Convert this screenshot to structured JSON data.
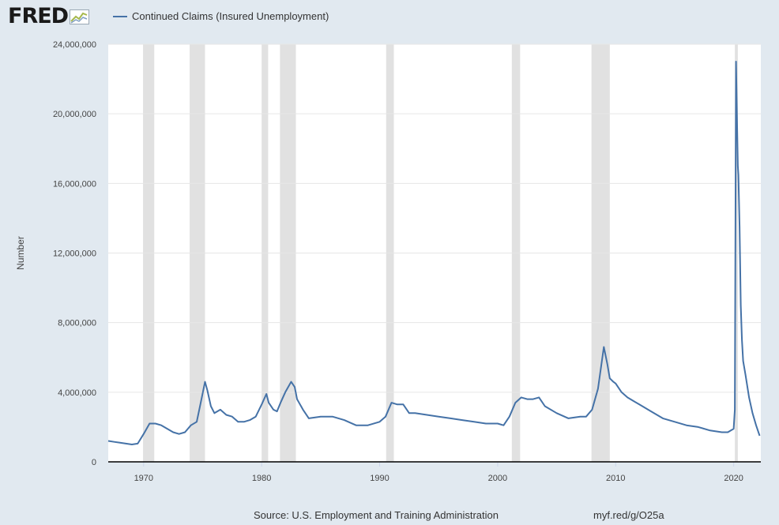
{
  "header": {
    "logo_text": "FRED",
    "logo_icon": "trend-chart-icon"
  },
  "chart_data": {
    "type": "line",
    "title": "",
    "xlabel": "",
    "ylabel": "Number",
    "xlim": [
      1967.0,
      2022.3
    ],
    "ylim": [
      0,
      24000000
    ],
    "grid": true,
    "legend_position": "top-left",
    "y_ticks": [
      0,
      4000000,
      8000000,
      12000000,
      16000000,
      20000000,
      24000000
    ],
    "y_tick_labels": [
      "0",
      "4,000,000",
      "8,000,000",
      "12,000,000",
      "16,000,000",
      "20,000,000",
      "24,000,000"
    ],
    "x_ticks": [
      1970,
      1980,
      1990,
      2000,
      2010,
      2020
    ],
    "x_tick_labels": [
      "1970",
      "1980",
      "1990",
      "2000",
      "2010",
      "2020"
    ],
    "recessions": [
      [
        1969.95,
        1970.9
      ],
      [
        1973.9,
        1975.2
      ],
      [
        1980.0,
        1980.55
      ],
      [
        1981.55,
        1982.9
      ],
      [
        1990.55,
        1991.2
      ],
      [
        2001.2,
        2001.9
      ],
      [
        2007.95,
        2009.5
      ],
      [
        2020.1,
        2020.35
      ]
    ],
    "series": [
      {
        "name": "Continued Claims (Insured Unemployment)",
        "color": "#4572a7",
        "x": [
          1967.0,
          1967.5,
          1968.0,
          1968.5,
          1969.0,
          1969.5,
          1970.0,
          1970.5,
          1971.0,
          1971.5,
          1972.0,
          1972.5,
          1973.0,
          1973.5,
          1974.0,
          1974.5,
          1974.9,
          1975.2,
          1975.4,
          1975.7,
          1976.0,
          1976.5,
          1977.0,
          1977.5,
          1978.0,
          1978.5,
          1979.0,
          1979.5,
          1980.0,
          1980.4,
          1980.6,
          1981.0,
          1981.3,
          1981.6,
          1982.0,
          1982.5,
          1982.8,
          1983.0,
          1983.5,
          1984.0,
          1985.0,
          1986.0,
          1987.0,
          1988.0,
          1989.0,
          1990.0,
          1990.5,
          1991.0,
          1991.5,
          1992.0,
          1992.5,
          1993.0,
          1994.0,
          1995.0,
          1996.0,
          1997.0,
          1998.0,
          1999.0,
          2000.0,
          2000.5,
          2001.0,
          2001.5,
          2002.0,
          2002.5,
          2003.0,
          2003.5,
          2004.0,
          2005.0,
          2006.0,
          2007.0,
          2007.5,
          2008.0,
          2008.5,
          2009.0,
          2009.3,
          2009.5,
          2009.8,
          2010.0,
          2010.5,
          2011.0,
          2011.5,
          2012.0,
          2013.0,
          2014.0,
          2015.0,
          2016.0,
          2017.0,
          2018.0,
          2019.0,
          2019.5,
          2020.0,
          2020.1,
          2020.2,
          2020.3,
          2020.35,
          2020.4,
          2020.5,
          2020.6,
          2020.7,
          2020.8,
          2021.0,
          2021.3,
          2021.6,
          2021.9,
          2022.2
        ],
        "values": [
          1200000,
          1150000,
          1100000,
          1050000,
          1000000,
          1050000,
          1600000,
          2200000,
          2200000,
          2100000,
          1900000,
          1700000,
          1600000,
          1700000,
          2100000,
          2300000,
          3600000,
          4600000,
          4100000,
          3200000,
          2800000,
          3000000,
          2700000,
          2600000,
          2300000,
          2300000,
          2400000,
          2600000,
          3300000,
          3900000,
          3400000,
          3000000,
          2900000,
          3400000,
          4000000,
          4600000,
          4300000,
          3600000,
          3000000,
          2500000,
          2600000,
          2600000,
          2400000,
          2100000,
          2100000,
          2300000,
          2600000,
          3400000,
          3300000,
          3300000,
          2800000,
          2800000,
          2700000,
          2600000,
          2500000,
          2400000,
          2300000,
          2200000,
          2200000,
          2100000,
          2600000,
          3400000,
          3700000,
          3600000,
          3600000,
          3700000,
          3200000,
          2800000,
          2500000,
          2600000,
          2600000,
          3000000,
          4200000,
          6600000,
          5600000,
          4800000,
          4600000,
          4500000,
          4000000,
          3700000,
          3500000,
          3300000,
          2900000,
          2500000,
          2300000,
          2100000,
          2000000,
          1800000,
          1700000,
          1700000,
          1900000,
          3000000,
          23000000,
          19000000,
          17000000,
          16500000,
          13500000,
          9000000,
          7000000,
          5800000,
          5000000,
          3700000,
          2800000,
          2100000,
          1500000
        ]
      }
    ]
  },
  "footer": {
    "source": "Source: U.S. Employment and Training Administration",
    "link": "myf.red/g/O25a"
  }
}
